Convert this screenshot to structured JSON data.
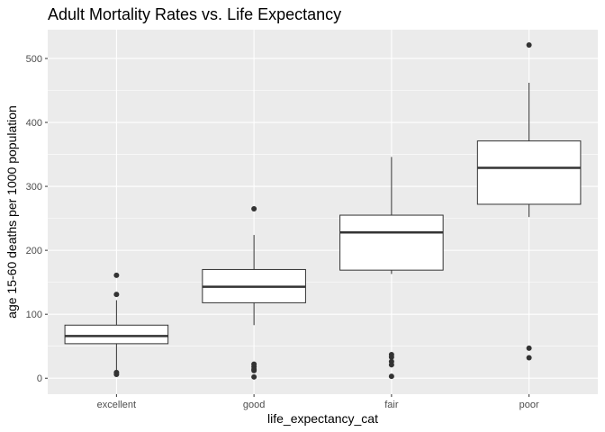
{
  "chart_data": {
    "type": "boxplot",
    "title": "Adult Mortality Rates vs. Life Expectancy",
    "xlabel": "life_expectancy_cat",
    "ylabel": "age 15-60 deaths per 1000 population",
    "categories": [
      "excellent",
      "good",
      "fair",
      "poor"
    ],
    "ylim": [
      -25,
      545
    ],
    "yticks": [
      0,
      100,
      200,
      300,
      400,
      500
    ],
    "grid": true,
    "boxes": [
      {
        "category": "excellent",
        "whisker_low": 10,
        "q1": 54,
        "median": 66,
        "q3": 83,
        "whisker_high": 122,
        "outliers": [
          161,
          131,
          9,
          6
        ]
      },
      {
        "category": "good",
        "whisker_low": 83,
        "q1": 118,
        "median": 143,
        "q3": 170,
        "whisker_high": 224,
        "outliers": [
          265,
          22,
          18,
          14,
          12,
          2
        ]
      },
      {
        "category": "fair",
        "whisker_low": 163,
        "q1": 169,
        "median": 228,
        "q3": 255,
        "whisker_high": 346,
        "outliers": [
          37,
          33,
          26,
          21,
          3
        ]
      },
      {
        "category": "poor",
        "whisker_low": 252,
        "q1": 272,
        "median": 329,
        "q3": 371,
        "whisker_high": 462,
        "outliers": [
          521,
          47,
          32
        ]
      }
    ],
    "colors": {
      "panel_background": "#ebebeb",
      "grid_major": "#ffffff",
      "box_fill": "#ffffff",
      "box_line": "#333333",
      "outlier": "#333333"
    }
  }
}
